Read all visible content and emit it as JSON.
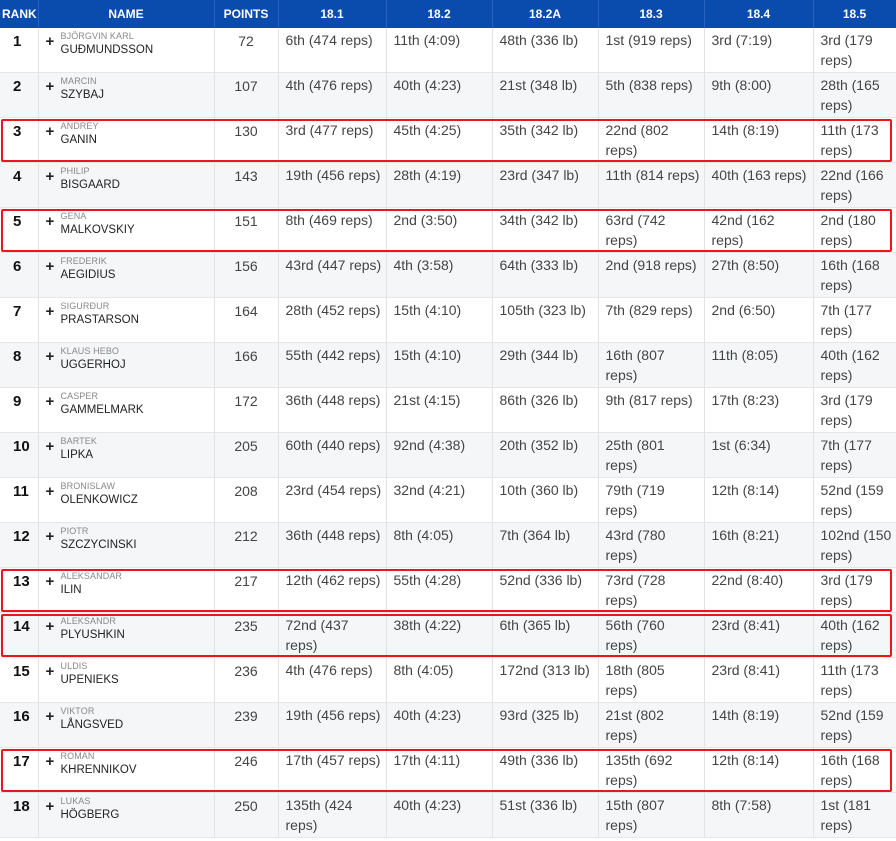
{
  "headers": [
    "RANK",
    "NAME",
    "POINTS",
    "18.1",
    "18.2",
    "18.2A",
    "18.3",
    "18.4",
    "18.5"
  ],
  "rows": [
    {
      "rank": "1",
      "plus": "+",
      "first": "BJÖRGVIN KARL",
      "last": "GUÐMUNDSSON",
      "points": "72",
      "scores": [
        "6th (474 reps)",
        "11th (4:09)",
        "48th (336 lb)",
        "1st (919 reps)",
        "3rd (7:19)",
        "3rd (179 reps)"
      ]
    },
    {
      "rank": "2",
      "plus": "+",
      "first": "MARCIN",
      "last": "SZYBAJ",
      "points": "107",
      "scores": [
        "4th (476 reps)",
        "40th (4:23)",
        "21st (348 lb)",
        "5th (838 reps)",
        "9th (8:00)",
        "28th (165 reps)"
      ]
    },
    {
      "rank": "3",
      "plus": "+",
      "first": "ANDREY",
      "last": "GANIN",
      "points": "130",
      "scores": [
        "3rd (477 reps)",
        "45th (4:25)",
        "35th (342 lb)",
        "22nd (802 reps)",
        "14th (8:19)",
        "11th (173 reps)"
      ]
    },
    {
      "rank": "4",
      "plus": "+",
      "first": "PHILIP",
      "last": "BISGAARD",
      "points": "143",
      "scores": [
        "19th (456 reps)",
        "28th (4:19)",
        "23rd (347 lb)",
        "11th (814 reps)",
        "40th (163 reps)",
        "22nd (166 reps)"
      ]
    },
    {
      "rank": "5",
      "plus": "+",
      "first": "GENA",
      "last": "MALKOVSKIY",
      "points": "151",
      "scores": [
        "8th (469 reps)",
        "2nd (3:50)",
        "34th (342 lb)",
        "63rd (742 reps)",
        "42nd (162 reps)",
        "2nd (180 reps)"
      ]
    },
    {
      "rank": "6",
      "plus": "+",
      "first": "FREDERIK",
      "last": "AEGIDIUS",
      "points": "156",
      "scores": [
        "43rd (447 reps)",
        "4th (3:58)",
        "64th (333 lb)",
        "2nd (918 reps)",
        "27th (8:50)",
        "16th (168 reps)"
      ]
    },
    {
      "rank": "7",
      "plus": "+",
      "first": "SIGURÐUR",
      "last": "PRASTARSON",
      "points": "164",
      "scores": [
        "28th (452 reps)",
        "15th (4:10)",
        "105th (323 lb)",
        "7th (829 reps)",
        "2nd (6:50)",
        "7th (177 reps)"
      ]
    },
    {
      "rank": "8",
      "plus": "+",
      "first": "KLAUS HEBO",
      "last": "UGGERHOJ",
      "points": "166",
      "scores": [
        "55th (442 reps)",
        "15th (4:10)",
        "29th (344 lb)",
        "16th (807 reps)",
        "11th (8:05)",
        "40th (162 reps)"
      ]
    },
    {
      "rank": "9",
      "plus": "+",
      "first": "CASPER",
      "last": "GAMMELMARK",
      "points": "172",
      "scores": [
        "36th (448 reps)",
        "21st (4:15)",
        "86th (326 lb)",
        "9th (817 reps)",
        "17th (8:23)",
        "3rd (179 reps)"
      ]
    },
    {
      "rank": "10",
      "plus": "+",
      "first": "BARTEK",
      "last": "LIPKA",
      "points": "205",
      "scores": [
        "60th (440 reps)",
        "92nd (4:38)",
        "20th (352 lb)",
        "25th (801 reps)",
        "1st (6:34)",
        "7th (177 reps)"
      ]
    },
    {
      "rank": "11",
      "plus": "+",
      "first": "BRONISLAW",
      "last": "OLENKOWICZ",
      "points": "208",
      "scores": [
        "23rd (454 reps)",
        "32nd (4:21)",
        "10th (360 lb)",
        "79th (719 reps)",
        "12th (8:14)",
        "52nd (159 reps)"
      ]
    },
    {
      "rank": "12",
      "plus": "+",
      "first": "PIOTR",
      "last": "SZCZYCINSKI",
      "points": "212",
      "scores": [
        "36th (448 reps)",
        "8th (4:05)",
        "7th (364 lb)",
        "43rd (780 reps)",
        "16th (8:21)",
        "102nd (150 reps)"
      ]
    },
    {
      "rank": "13",
      "plus": "+",
      "first": "ALEKSANDAR",
      "last": "ILIN",
      "points": "217",
      "scores": [
        "12th (462 reps)",
        "55th (4:28)",
        "52nd (336 lb)",
        "73rd (728 reps)",
        "22nd (8:40)",
        "3rd (179 reps)"
      ]
    },
    {
      "rank": "14",
      "plus": "+",
      "first": "ALEKSANDR",
      "last": "PLYUSHKIN",
      "points": "235",
      "scores": [
        "72nd (437 reps)",
        "38th (4:22)",
        "6th (365 lb)",
        "56th (760 reps)",
        "23rd (8:41)",
        "40th (162 reps)"
      ]
    },
    {
      "rank": "15",
      "plus": "+",
      "first": "ULDIS",
      "last": "UPENIEKS",
      "points": "236",
      "scores": [
        "4th (476 reps)",
        "8th (4:05)",
        "172nd (313 lb)",
        "18th (805 reps)",
        "23rd (8:41)",
        "11th (173 reps)"
      ]
    },
    {
      "rank": "16",
      "plus": "+",
      "first": "VIKTOR",
      "last": "LÅNGSVED",
      "points": "239",
      "scores": [
        "19th (456 reps)",
        "40th (4:23)",
        "93rd (325 lb)",
        "21st (802 reps)",
        "14th (8:19)",
        "52nd (159 reps)"
      ]
    },
    {
      "rank": "17",
      "plus": "+",
      "first": "ROMAN",
      "last": "KHRENNIKOV",
      "points": "246",
      "scores": [
        "17th (457 reps)",
        "17th (4:11)",
        "49th (336 lb)",
        "135th (692 reps)",
        "12th (8:14)",
        "16th (168 reps)"
      ]
    },
    {
      "rank": "18",
      "plus": "+",
      "first": "LUKAS",
      "last": "HÖGBERG",
      "points": "250",
      "scores": [
        "135th (424 reps)",
        "40th (4:23)",
        "51st (336 lb)",
        "15th (807 reps)",
        "8th (7:58)",
        "1st (181 reps)"
      ]
    }
  ],
  "highlighted_ranks": [
    "3",
    "5",
    "13",
    "14",
    "17"
  ],
  "colors": {
    "header_bg": "#0a4cad",
    "highlight": "#e8171e",
    "row_alt": "#f5f6f8"
  }
}
